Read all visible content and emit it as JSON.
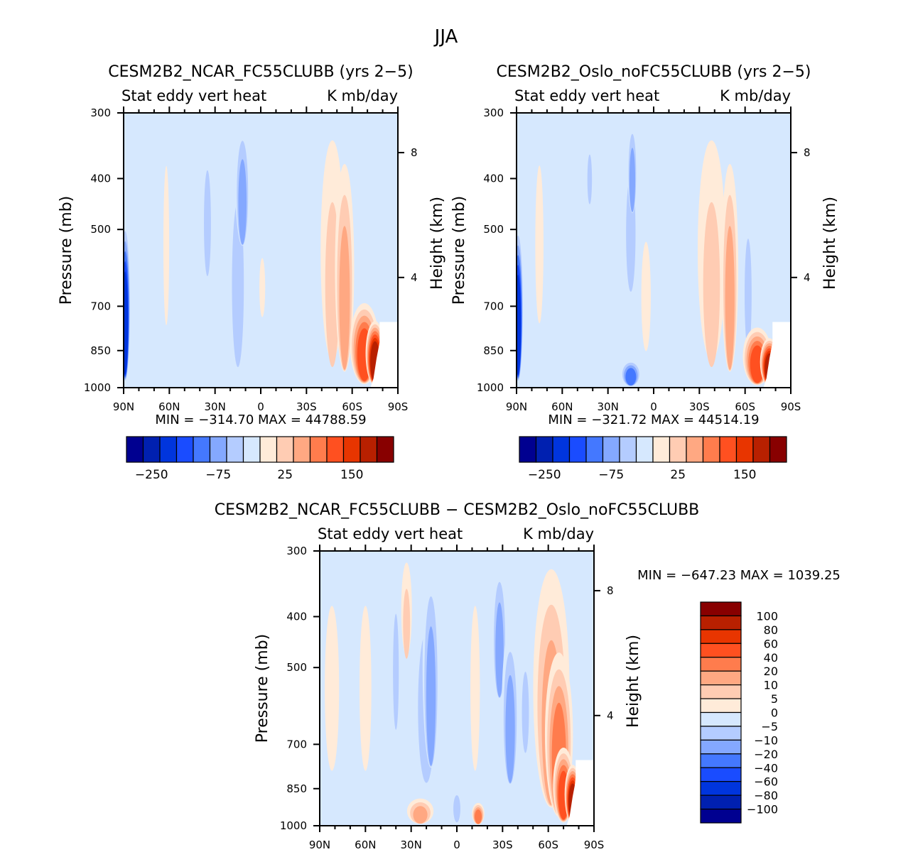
{
  "figure_title": "JJA",
  "chart_data": [
    {
      "type": "heatmap",
      "title": "CESM2B2_NCAR_FC55CLUBB (yrs 2−5)",
      "subtitle_left": "Stat eddy vert heat",
      "subtitle_right": "K mb/day",
      "xlabel": "",
      "ylabel": "Pressure (mb)",
      "ylabel_right": "Height (km)",
      "xticks": [
        "90N",
        "60N",
        "30N",
        "0",
        "30S",
        "60S",
        "90S"
      ],
      "xlim": [
        90,
        -90
      ],
      "yticks": [
        "300",
        "400",
        "500",
        "700",
        "850",
        "1000"
      ],
      "ylim": [
        1000,
        300
      ],
      "yticks_right": [
        "8",
        "4"
      ],
      "stats": "MIN = −314.70   MAX = 44788.59",
      "colorbar": {
        "orientation": "horizontal",
        "labels": [
          "−250",
          "−75",
          "25",
          "150"
        ],
        "colors": [
          "#000090",
          "#0020b0",
          "#0035dd",
          "#1a4cff",
          "#4478ff",
          "#84a8ff",
          "#b4ccff",
          "#d6e8fe",
          "#ffebd9",
          "#ffccb3",
          "#ffa882",
          "#ff7c4d",
          "#ff5020",
          "#e83500",
          "#b82000",
          "#880000"
        ]
      },
      "features": [
        {
          "lat": 89,
          "p_top": 470,
          "p_bot": 1000,
          "width": 3,
          "level": 2,
          "note": "strong negative near 90N lower troposphere"
        },
        {
          "lat": 62,
          "p_top": 300,
          "p_bot": 960,
          "width": 3,
          "level": 8
        },
        {
          "lat": 35,
          "p_top": 300,
          "p_bot": 650,
          "width": 4,
          "level": 6
        },
        {
          "lat": 15,
          "p_top": 300,
          "p_bot": 1000,
          "width": 8,
          "level": 6
        },
        {
          "lat": 12,
          "p_top": 300,
          "p_bot": 560,
          "width": 5,
          "level": 5
        },
        {
          "lat": -1,
          "p_top": 520,
          "p_bot": 800,
          "width": 3,
          "level": 8
        },
        {
          "lat": -47,
          "p_top": 300,
          "p_bot": 1000,
          "width": 10,
          "level": 9
        },
        {
          "lat": -55,
          "p_top": 350,
          "p_bot": 1000,
          "width": 7,
          "level": 10
        },
        {
          "lat": -68,
          "p_top": 680,
          "p_bot": 1000,
          "width": 10,
          "level": 12
        },
        {
          "lat": -75,
          "p_top": 740,
          "p_bot": 1000,
          "width": 6,
          "level": 14
        },
        {
          "lat": -81,
          "p_top": 760,
          "p_bot": 900,
          "width": 2,
          "level": 15
        }
      ]
    },
    {
      "type": "heatmap",
      "title": "CESM2B2_Oslo_noFC55CLUBB (yrs 2−5)",
      "subtitle_left": "Stat eddy vert heat",
      "subtitle_right": "K mb/day",
      "xlabel": "",
      "ylabel": "Pressure (mb)",
      "ylabel_right": "Height (km)",
      "xticks": [
        "90N",
        "60N",
        "30N",
        "0",
        "30S",
        "60S",
        "90S"
      ],
      "xlim": [
        90,
        -90
      ],
      "yticks": [
        "300",
        "400",
        "500",
        "700",
        "850",
        "1000"
      ],
      "ylim": [
        1000,
        300
      ],
      "yticks_right": [
        "8",
        "4"
      ],
      "stats": "MIN = −321.72   MAX = 44514.19",
      "colorbar": {
        "orientation": "horizontal",
        "labels": [
          "−250",
          "−75",
          "25",
          "150"
        ],
        "colors": [
          "#000090",
          "#0020b0",
          "#0035dd",
          "#1a4cff",
          "#4478ff",
          "#84a8ff",
          "#b4ccff",
          "#d6e8fe",
          "#ffebd9",
          "#ffccb3",
          "#ffa882",
          "#ff7c4d",
          "#ff5020",
          "#e83500",
          "#b82000",
          "#880000"
        ]
      },
      "features": [
        {
          "lat": 89,
          "p_top": 480,
          "p_bot": 1000,
          "width": 3,
          "level": 2
        },
        {
          "lat": 75,
          "p_top": 300,
          "p_bot": 950,
          "width": 5,
          "level": 8
        },
        {
          "lat": 42,
          "p_top": 320,
          "p_bot": 460,
          "width": 2,
          "level": 6
        },
        {
          "lat": 15,
          "p_top": 300,
          "p_bot": 700,
          "width": 6,
          "level": 6
        },
        {
          "lat": 14,
          "p_top": 300,
          "p_bot": 480,
          "width": 3,
          "level": 5
        },
        {
          "lat": 15,
          "p_top": 880,
          "p_bot": 1000,
          "width": 7,
          "level": 4
        },
        {
          "lat": 5,
          "p_top": 450,
          "p_bot": 1000,
          "width": 6,
          "level": 8
        },
        {
          "lat": -38,
          "p_top": 300,
          "p_bot": 1000,
          "width": 12,
          "level": 9
        },
        {
          "lat": -50,
          "p_top": 350,
          "p_bot": 1000,
          "width": 6,
          "level": 10
        },
        {
          "lat": -62,
          "p_top": 400,
          "p_bot": 900,
          "width": 4,
          "level": 6
        },
        {
          "lat": -68,
          "p_top": 760,
          "p_bot": 1000,
          "width": 10,
          "level": 12
        },
        {
          "lat": -76,
          "p_top": 800,
          "p_bot": 1000,
          "width": 6,
          "level": 14
        },
        {
          "lat": -80,
          "p_top": 840,
          "p_bot": 900,
          "width": 2,
          "level": 3
        }
      ]
    },
    {
      "type": "heatmap",
      "title": "CESM2B2_NCAR_FC55CLUBB − CESM2B2_Oslo_noFC55CLUBB",
      "subtitle_left": "Stat eddy vert heat",
      "subtitle_right": "K mb/day",
      "xlabel": "",
      "ylabel": "Pressure (mb)",
      "ylabel_right": "Height (km)",
      "xticks": [
        "90N",
        "60N",
        "30N",
        "0",
        "30S",
        "60S",
        "90S"
      ],
      "xlim": [
        90,
        -90
      ],
      "yticks": [
        "300",
        "400",
        "500",
        "700",
        "850",
        "1000"
      ],
      "ylim": [
        1000,
        300
      ],
      "yticks_right": [
        "8",
        "4"
      ],
      "stats": "MIN = −647.23   MAX = 1039.25",
      "colorbar": {
        "orientation": "vertical",
        "labels": [
          "100",
          "80",
          "60",
          "40",
          "20",
          "10",
          "5",
          "0",
          "−5",
          "−10",
          "−20",
          "−40",
          "−60",
          "−80",
          "−100"
        ],
        "colors": [
          "#880000",
          "#b82000",
          "#e83500",
          "#ff5020",
          "#ff7c4d",
          "#ffa882",
          "#ffccb3",
          "#ffebd9",
          "#d6e8fe",
          "#b4ccff",
          "#84a8ff",
          "#4478ff",
          "#1a4cff",
          "#0035dd",
          "#0020b0",
          "#000090"
        ]
      },
      "features": [
        {
          "lat": 82,
          "p_top": 300,
          "p_bot": 1000,
          "width": 10,
          "level": 8
        },
        {
          "lat": 60,
          "p_top": 300,
          "p_bot": 1000,
          "width": 8,
          "level": 8
        },
        {
          "lat": 40,
          "p_top": 300,
          "p_bot": 700,
          "width": 3,
          "level": 6
        },
        {
          "lat": 33,
          "p_top": 300,
          "p_bot": 500,
          "width": 4,
          "level": 9
        },
        {
          "lat": 20,
          "p_top": 300,
          "p_bot": 900,
          "width": 12,
          "level": 6
        },
        {
          "lat": 17,
          "p_top": 300,
          "p_bot": 830,
          "width": 6,
          "level": 5
        },
        {
          "lat": 24,
          "p_top": 880,
          "p_bot": 1000,
          "width": 10,
          "level": 10
        },
        {
          "lat": 0,
          "p_top": 820,
          "p_bot": 1000,
          "width": 4,
          "level": 6
        },
        {
          "lat": -12,
          "p_top": 300,
          "p_bot": 1000,
          "width": 6,
          "level": 8
        },
        {
          "lat": -14,
          "p_top": 900,
          "p_bot": 1000,
          "width": 4,
          "level": 11
        },
        {
          "lat": -28,
          "p_top": 300,
          "p_bot": 600,
          "width": 5,
          "level": 5
        },
        {
          "lat": -35,
          "p_top": 400,
          "p_bot": 880,
          "width": 6,
          "level": 5
        },
        {
          "lat": -45,
          "p_top": 420,
          "p_bot": 760,
          "width": 4,
          "level": 6
        },
        {
          "lat": -62,
          "p_top": 300,
          "p_bot": 1000,
          "width": 14,
          "level": 10
        },
        {
          "lat": -67,
          "p_top": 450,
          "p_bot": 1000,
          "width": 10,
          "level": 11
        },
        {
          "lat": -70,
          "p_top": 700,
          "p_bot": 1000,
          "width": 7,
          "level": 12
        },
        {
          "lat": -76,
          "p_top": 760,
          "p_bot": 1000,
          "width": 5,
          "level": 14
        },
        {
          "lat": -80,
          "p_top": 780,
          "p_bot": 920,
          "width": 2,
          "level": 15
        }
      ]
    }
  ]
}
